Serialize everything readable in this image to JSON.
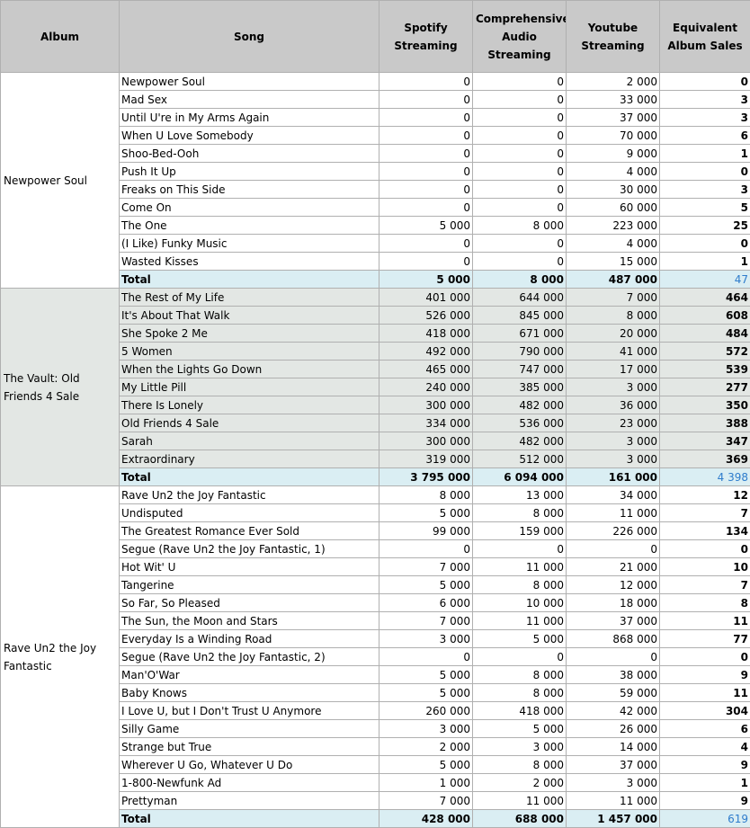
{
  "headers": {
    "album": "Album",
    "song": "Song",
    "spotify": "Spotify Streaming",
    "cas": "Comprehensive Audio Streaming",
    "youtube": "Youtube Streaming",
    "eas": "Equivalent Album Sales"
  },
  "albums": [
    {
      "name": "Newpower Soul",
      "shaded": false,
      "songs": [
        {
          "song": "Newpower Soul",
          "spotify": "0",
          "cas": "0",
          "youtube": "2 000",
          "eas": "0"
        },
        {
          "song": "Mad Sex",
          "spotify": "0",
          "cas": "0",
          "youtube": "33 000",
          "eas": "3"
        },
        {
          "song": "Until U're in My Arms Again",
          "spotify": "0",
          "cas": "0",
          "youtube": "37 000",
          "eas": "3"
        },
        {
          "song": "When U Love Somebody",
          "spotify": "0",
          "cas": "0",
          "youtube": "70 000",
          "eas": "6"
        },
        {
          "song": "Shoo-Bed-Ooh",
          "spotify": "0",
          "cas": "0",
          "youtube": "9 000",
          "eas": "1"
        },
        {
          "song": "Push It Up",
          "spotify": "0",
          "cas": "0",
          "youtube": "4 000",
          "eas": "0"
        },
        {
          "song": "Freaks on This Side",
          "spotify": "0",
          "cas": "0",
          "youtube": "30 000",
          "eas": "3"
        },
        {
          "song": "Come On",
          "spotify": "0",
          "cas": "0",
          "youtube": "60 000",
          "eas": "5"
        },
        {
          "song": "The One",
          "spotify": "5 000",
          "cas": "8 000",
          "youtube": "223 000",
          "eas": "25"
        },
        {
          "song": "(I Like) Funky Music",
          "spotify": "0",
          "cas": "0",
          "youtube": "4 000",
          "eas": "0"
        },
        {
          "song": "Wasted Kisses",
          "spotify": "0",
          "cas": "0",
          "youtube": "15 000",
          "eas": "1"
        }
      ],
      "total": {
        "label": "Total",
        "spotify": "5 000",
        "cas": "8 000",
        "youtube": "487 000",
        "eas": "47"
      }
    },
    {
      "name": "The Vault: Old Friends 4 Sale",
      "shaded": true,
      "songs": [
        {
          "song": "The Rest of My Life",
          "spotify": "401 000",
          "cas": "644 000",
          "youtube": "7 000",
          "eas": "464"
        },
        {
          "song": "It's About That Walk",
          "spotify": "526 000",
          "cas": "845 000",
          "youtube": "8 000",
          "eas": "608"
        },
        {
          "song": "She Spoke 2 Me",
          "spotify": "418 000",
          "cas": "671 000",
          "youtube": "20 000",
          "eas": "484"
        },
        {
          "song": "5 Women",
          "spotify": "492 000",
          "cas": "790 000",
          "youtube": "41 000",
          "eas": "572"
        },
        {
          "song": "When the Lights Go Down",
          "spotify": "465 000",
          "cas": "747 000",
          "youtube": "17 000",
          "eas": "539"
        },
        {
          "song": "My Little Pill",
          "spotify": "240 000",
          "cas": "385 000",
          "youtube": "3 000",
          "eas": "277"
        },
        {
          "song": "There Is Lonely",
          "spotify": "300 000",
          "cas": "482 000",
          "youtube": "36 000",
          "eas": "350"
        },
        {
          "song": "Old Friends 4 Sale",
          "spotify": "334 000",
          "cas": "536 000",
          "youtube": "23 000",
          "eas": "388"
        },
        {
          "song": "Sarah",
          "spotify": "300 000",
          "cas": "482 000",
          "youtube": "3 000",
          "eas": "347"
        },
        {
          "song": "Extraordinary",
          "spotify": "319 000",
          "cas": "512 000",
          "youtube": "3 000",
          "eas": "369"
        }
      ],
      "total": {
        "label": "Total",
        "spotify": "3 795 000",
        "cas": "6 094 000",
        "youtube": "161 000",
        "eas": "4 398"
      }
    },
    {
      "name": "Rave Un2 the Joy Fantastic",
      "shaded": false,
      "songs": [
        {
          "song": "Rave Un2 the Joy Fantastic",
          "spotify": "8 000",
          "cas": "13 000",
          "youtube": "34 000",
          "eas": "12"
        },
        {
          "song": "Undisputed",
          "spotify": "5 000",
          "cas": "8 000",
          "youtube": "11 000",
          "eas": "7"
        },
        {
          "song": "The Greatest Romance Ever Sold",
          "spotify": "99 000",
          "cas": "159 000",
          "youtube": "226 000",
          "eas": "134"
        },
        {
          "song": "Segue (Rave Un2 the Joy Fantastic, 1)",
          "spotify": "0",
          "cas": "0",
          "youtube": "0",
          "eas": "0"
        },
        {
          "song": "Hot Wit' U",
          "spotify": "7 000",
          "cas": "11 000",
          "youtube": "21 000",
          "eas": "10"
        },
        {
          "song": "Tangerine",
          "spotify": "5 000",
          "cas": "8 000",
          "youtube": "12 000",
          "eas": "7"
        },
        {
          "song": "So Far, So Pleased",
          "spotify": "6 000",
          "cas": "10 000",
          "youtube": "18 000",
          "eas": "8"
        },
        {
          "song": "The Sun, the Moon and Stars",
          "spotify": "7 000",
          "cas": "11 000",
          "youtube": "37 000",
          "eas": "11"
        },
        {
          "song": "Everyday Is a Winding Road",
          "spotify": "3 000",
          "cas": "5 000",
          "youtube": "868 000",
          "eas": "77"
        },
        {
          "song": "Segue (Rave Un2 the Joy Fantastic, 2)",
          "spotify": "0",
          "cas": "0",
          "youtube": "0",
          "eas": "0"
        },
        {
          "song": "Man'O'War",
          "spotify": "5 000",
          "cas": "8 000",
          "youtube": "38 000",
          "eas": "9"
        },
        {
          "song": "Baby Knows",
          "spotify": "5 000",
          "cas": "8 000",
          "youtube": "59 000",
          "eas": "11"
        },
        {
          "song": "I Love U, but I Don't Trust U Anymore",
          "spotify": "260 000",
          "cas": "418 000",
          "youtube": "42 000",
          "eas": "304"
        },
        {
          "song": "Silly Game",
          "spotify": "3 000",
          "cas": "5 000",
          "youtube": "26 000",
          "eas": "6"
        },
        {
          "song": "Strange but True",
          "spotify": "2 000",
          "cas": "3 000",
          "youtube": "14 000",
          "eas": "4"
        },
        {
          "song": "Wherever U Go, Whatever U Do",
          "spotify": "5 000",
          "cas": "8 000",
          "youtube": "37 000",
          "eas": "9"
        },
        {
          "song": "1-800-Newfunk Ad",
          "spotify": "1 000",
          "cas": "2 000",
          "youtube": "3 000",
          "eas": "1"
        },
        {
          "song": "Prettyman",
          "spotify": "7 000",
          "cas": "11 000",
          "youtube": "11 000",
          "eas": "9"
        }
      ],
      "total": {
        "label": "Total",
        "spotify": "428 000",
        "cas": "688 000",
        "youtube": "1 457 000",
        "eas": "619"
      }
    }
  ]
}
